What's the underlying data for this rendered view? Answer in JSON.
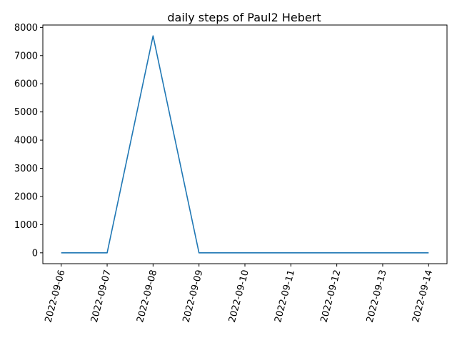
{
  "chart_data": {
    "type": "line",
    "title": "daily steps of Paul2 Hebert",
    "xlabel": "",
    "ylabel": "",
    "x": [
      "2022-09-06",
      "2022-09-07",
      "2022-09-08",
      "2022-09-09",
      "2022-09-10",
      "2022-09-11",
      "2022-09-12",
      "2022-09-13",
      "2022-09-14"
    ],
    "series": [
      {
        "values": [
          0,
          0,
          7700,
          0,
          0,
          0,
          0,
          0,
          0
        ],
        "color": "#1f77b4"
      }
    ],
    "ylim": [
      -385,
      8085
    ],
    "yticks": [
      0,
      1000,
      2000,
      3000,
      4000,
      5000,
      6000,
      7000,
      8000
    ],
    "grid": false,
    "legend": "none"
  }
}
